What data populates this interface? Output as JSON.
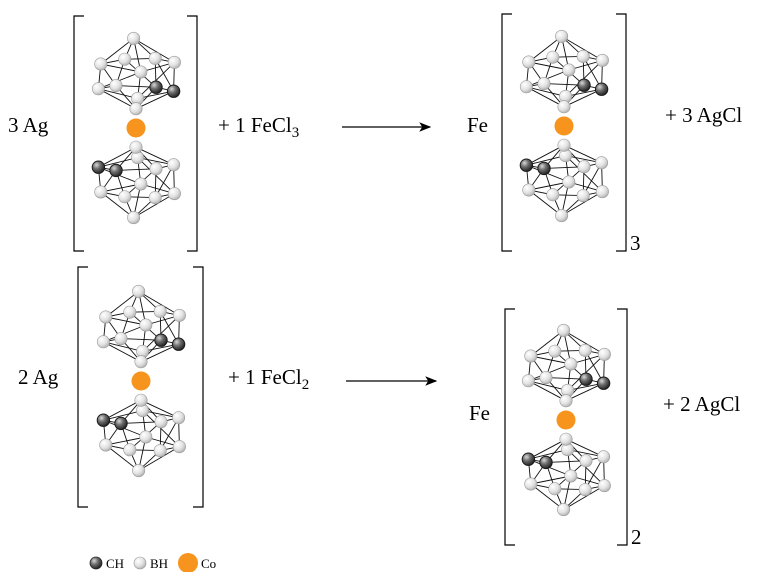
{
  "reactions": [
    {
      "reactant_metal": "3 Ag",
      "reagent": "+ 1 FeCl",
      "reagent_subscript": "3",
      "product_metal": "Fe",
      "product_subscript": "3",
      "byproduct": "+ 3 AgCl"
    },
    {
      "reactant_metal": "2 Ag",
      "reagent": "+ 1 FeCl",
      "reagent_subscript": "2",
      "product_metal": "Fe",
      "product_subscript": "2",
      "byproduct": "+ 2 AgCl"
    }
  ],
  "legend": [
    {
      "label": "CH",
      "icon": "ch-atom-icon",
      "color": "#555555"
    },
    {
      "label": "BH",
      "icon": "bh-atom-icon",
      "color": "#e6e6e6"
    },
    {
      "label": "Co",
      "icon": "co-atom-icon",
      "color": "#f7941d"
    }
  ]
}
